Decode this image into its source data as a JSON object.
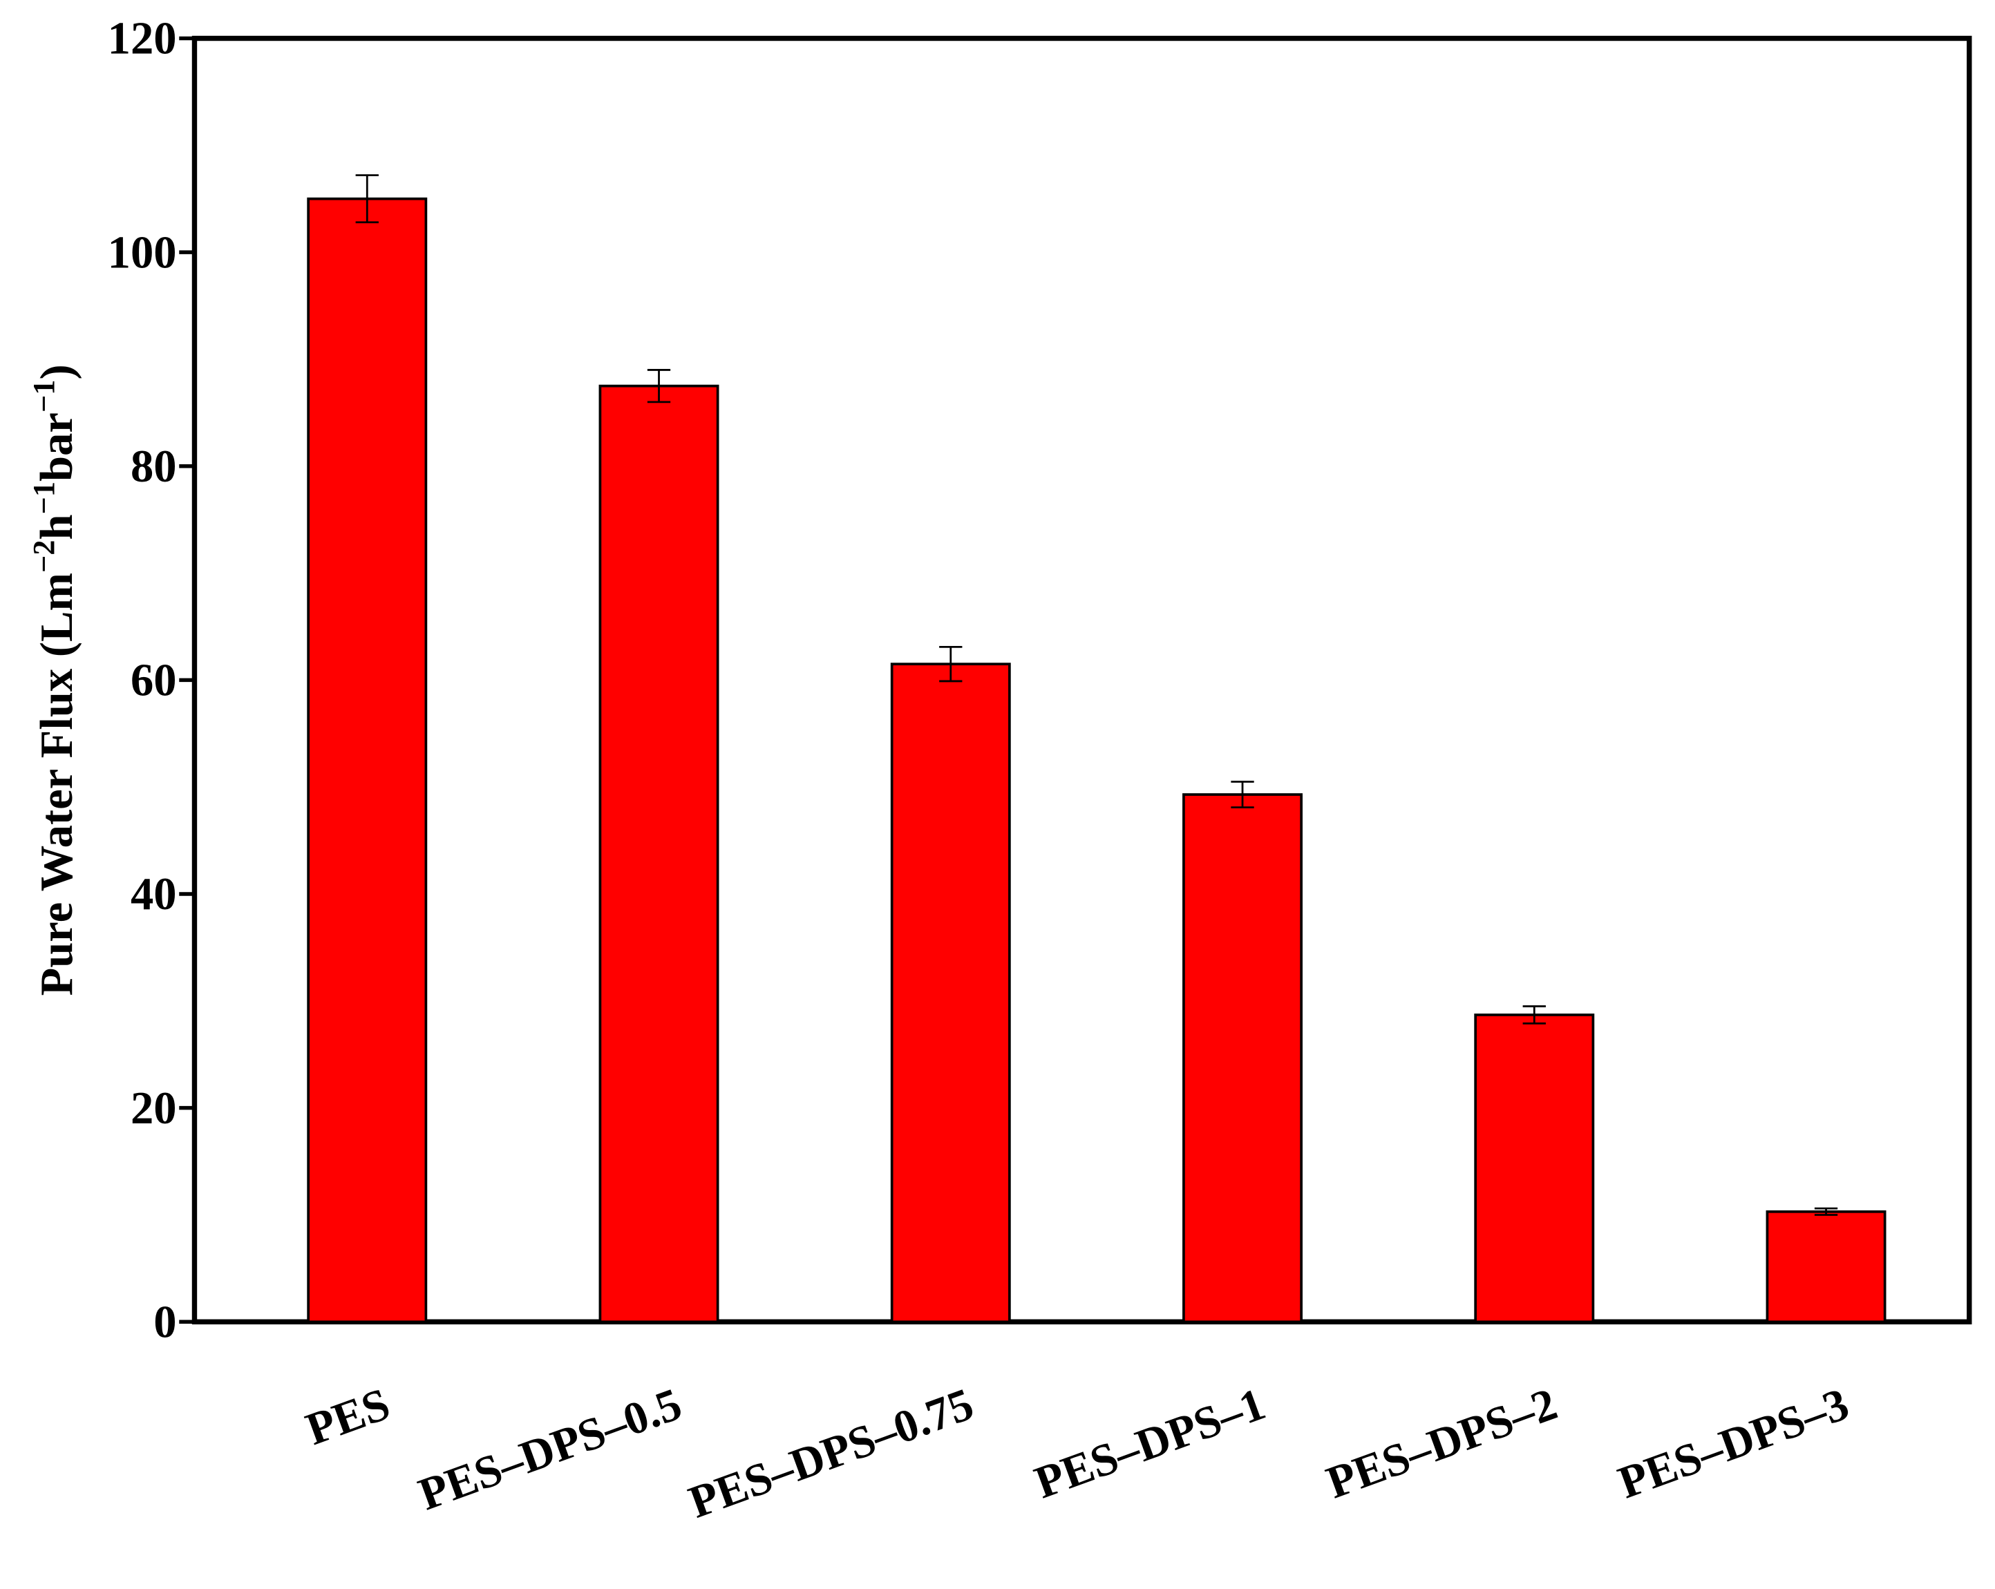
{
  "chart_data": {
    "type": "bar",
    "ylabel": [
      "Pure Water Flux (Lm",
      "−2",
      "h",
      "−1",
      "bar",
      "−1",
      ")"
    ],
    "categories": [
      "PES",
      "PES–DPS–0.5",
      "PES–DPS–0.75",
      "PES–DPS–1",
      "PES–DPS–2",
      "PES–DPS–3"
    ],
    "values": [
      105,
      87.5,
      61.5,
      49.3,
      28.7,
      10.3
    ],
    "errors": [
      2.2,
      1.5,
      1.6,
      1.2,
      0.8,
      0.3
    ],
    "color": "#ff0000",
    "ylim": [
      0,
      120
    ],
    "yticks": [
      0,
      20,
      40,
      60,
      80,
      100,
      120
    ],
    "grid": false
  }
}
